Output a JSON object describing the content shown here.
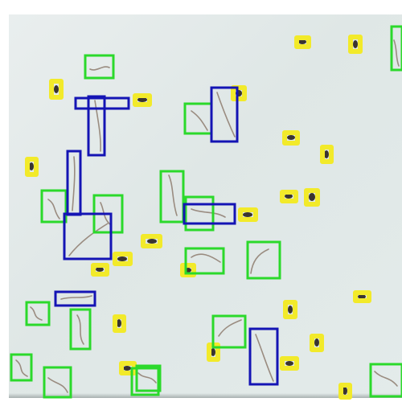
{
  "scene": {
    "description_visible_text": "",
    "colors": {
      "green_box": "#2bd92b",
      "blue_box": "#1414b4",
      "yellow_box": "#f2ea2a",
      "worm": "#9a8c80",
      "background": "#e3ebea"
    },
    "legend": {
      "green": "",
      "blue": "",
      "yellow": ""
    }
  }
}
